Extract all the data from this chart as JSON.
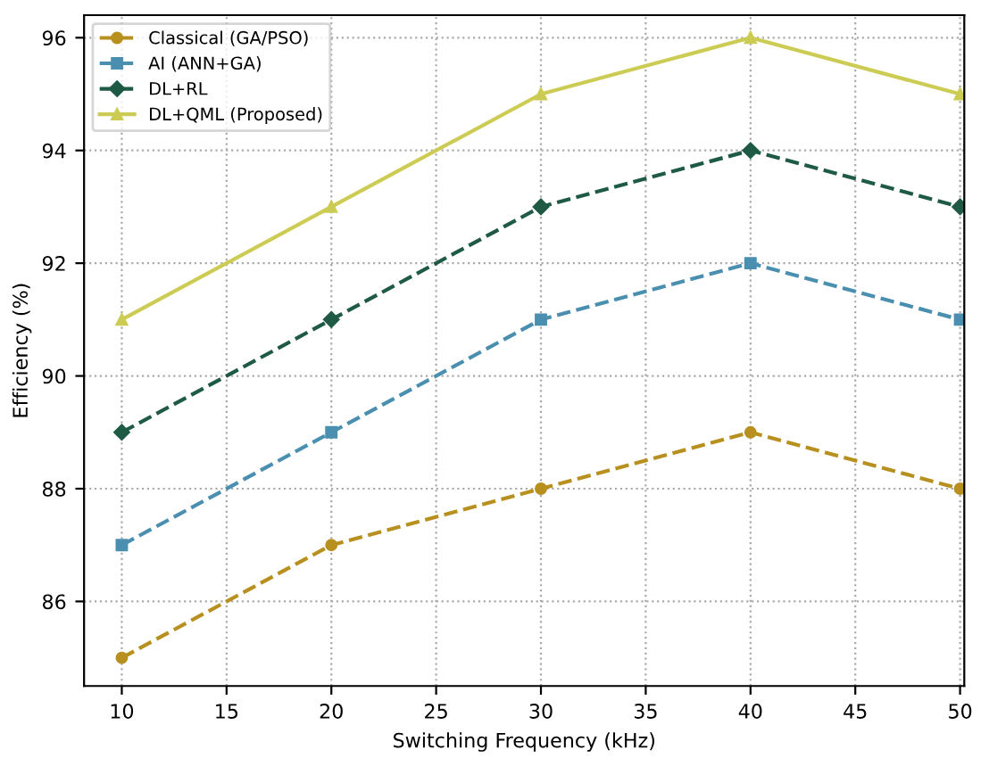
{
  "chart_data": {
    "type": "line",
    "xlabel": "Switching Frequency (kHz)",
    "ylabel": "Efficiency (%)",
    "x": [
      10,
      20,
      30,
      40,
      50
    ],
    "series": [
      {
        "name": "Classical (GA/PSO)",
        "color": "#b8901f",
        "values": [
          85,
          87,
          88,
          89,
          88
        ],
        "marker": "circle",
        "line_style": "dashed"
      },
      {
        "name": "AI (ANN+GA)",
        "color": "#4a8fb0",
        "values": [
          87,
          89,
          91,
          92,
          91
        ],
        "marker": "square",
        "line_style": "dashed"
      },
      {
        "name": "DL+RL",
        "color": "#1f5a45",
        "values": [
          89,
          91,
          93,
          94,
          93
        ],
        "marker": "diamond",
        "line_style": "dashed"
      },
      {
        "name": "DL+QML (Proposed)",
        "color": "#cccc55",
        "values": [
          91,
          93,
          95,
          96,
          95
        ],
        "marker": "triangle",
        "line_style": "solid"
      }
    ],
    "xlim": [
      8.2,
      50.2
    ],
    "ylim": [
      84.5,
      96.4
    ],
    "xticks": [
      10,
      15,
      20,
      25,
      30,
      35,
      40,
      45,
      50
    ],
    "yticks": [
      86,
      88,
      90,
      92,
      94,
      96
    ],
    "grid": true,
    "legend": "top left"
  }
}
